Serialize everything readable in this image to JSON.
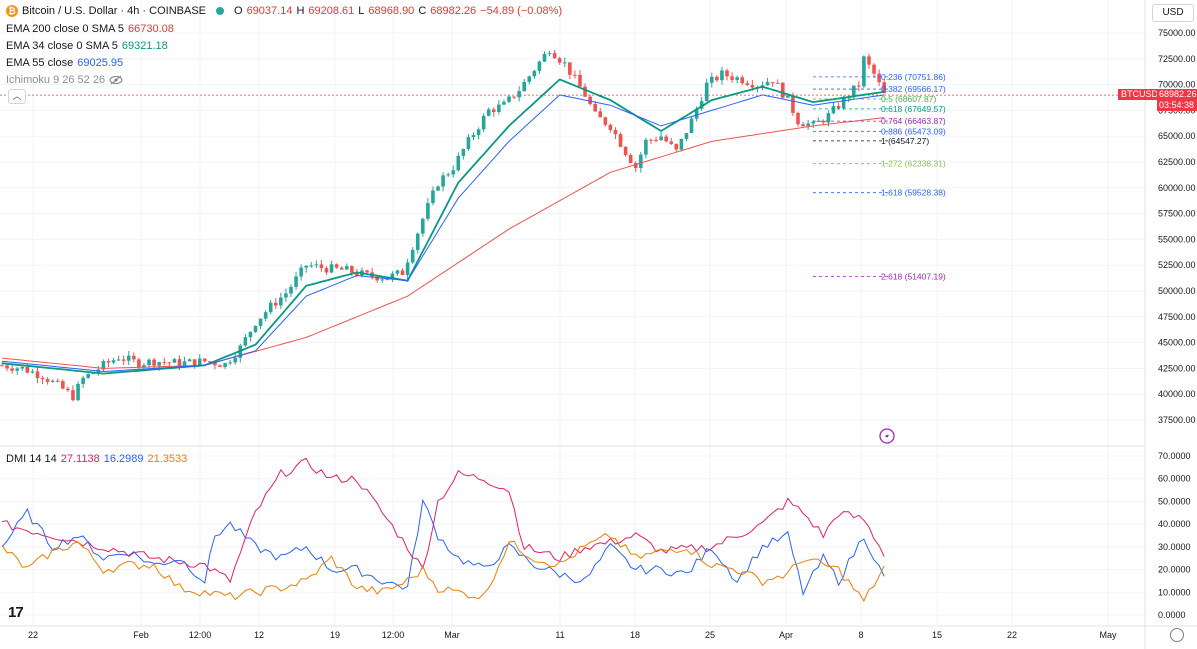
{
  "header": {
    "symbol_title": "Bitcoin / U.S. Dollar · 4h · COINBASE",
    "ohlc": {
      "o_label": "O",
      "o_val": "69037.14",
      "h_label": "H",
      "h_val": "69208.61",
      "l_label": "L",
      "l_val": "68968.90",
      "c_label": "C",
      "c_val": "68982.26",
      "change": "−54.89 (−0.08%)"
    }
  },
  "legend": {
    "ema200": {
      "label": "EMA 200 close 0 SMA 5",
      "value": "66730.08",
      "color": "#e53935"
    },
    "ema34": {
      "label": "EMA 34 close 0 SMA 5",
      "value": "69321.18",
      "color": "#089981"
    },
    "ema55": {
      "label": "EMA 55 close",
      "value": "69025.95",
      "color": "#2962ff"
    },
    "ichimoku": {
      "label": "Ichimoku 9 26 52 26"
    }
  },
  "currency": "USD",
  "price_label": {
    "symbol": "BTCUSD",
    "price": "68982.26",
    "countdown": "03:54:38"
  },
  "icons": [
    "bitcoin-icon",
    "eye-hidden-icon",
    "chevron-up-icon",
    "lightning-icon",
    "tradingview-logo",
    "settings-icon"
  ],
  "colors": {
    "up": "#26a69a",
    "down": "#ef5350",
    "ema200": "#ef5350",
    "ema34": "#089981",
    "ema55": "#2962ff",
    "di_plus": "#2962ff",
    "di_minus": "#e91e63",
    "adx": "#f57c00"
  },
  "chart_data": [
    {
      "type": "candlestick",
      "title": "Bitcoin / U.S. Dollar · 4h · COINBASE",
      "ylim": [
        36500,
        76000
      ],
      "y_ticks": [
        "75000.00",
        "72500.00",
        "70000.00",
        "67500.00",
        "65000.00",
        "62500.00",
        "60000.00",
        "57500.00",
        "55000.00",
        "52500.00",
        "50000.00",
        "47500.00",
        "45000.00",
        "42500.00",
        "40000.00",
        "37500.00"
      ],
      "x_ticks": [
        "22",
        "Feb",
        "12:00",
        "12",
        "19",
        "12:00",
        "Mar",
        "11",
        "18",
        "25",
        "Apr",
        "8",
        "15",
        "22",
        "May"
      ],
      "price_path": [
        [
          0,
          42800
        ],
        [
          4,
          42500
        ],
        [
          8,
          41800
        ],
        [
          12,
          40500
        ],
        [
          14,
          39800
        ],
        [
          16,
          41500
        ],
        [
          20,
          42800
        ],
        [
          23,
          43600
        ],
        [
          27,
          43000
        ],
        [
          30,
          43200
        ],
        [
          35,
          43000
        ],
        [
          40,
          43200
        ],
        [
          44,
          42900
        ],
        [
          47,
          44500
        ],
        [
          50,
          47000
        ],
        [
          53,
          48500
        ],
        [
          56,
          49800
        ],
        [
          60,
          52500
        ],
        [
          64,
          52200
        ],
        [
          68,
          52000
        ],
        [
          72,
          51500
        ],
        [
          76,
          51300
        ],
        [
          79,
          51800
        ],
        [
          83,
          57000
        ],
        [
          86,
          60500
        ],
        [
          89,
          62000
        ],
        [
          92,
          64500
        ],
        [
          94,
          66000
        ],
        [
          96,
          67500
        ],
        [
          99,
          68000
        ],
        [
          102,
          69500
        ],
        [
          105,
          71500
        ],
        [
          108,
          73500
        ],
        [
          111,
          72000
        ],
        [
          113,
          70500
        ],
        [
          115,
          69000
        ],
        [
          117,
          67000
        ],
        [
          120,
          66000
        ],
        [
          123,
          63500
        ],
        [
          125,
          62000
        ],
        [
          127,
          64500
        ],
        [
          130,
          65000
        ],
        [
          133,
          63500
        ],
        [
          136,
          66500
        ],
        [
          139,
          70000
        ],
        [
          142,
          71000
        ],
        [
          146,
          70500
        ],
        [
          149,
          70000
        ],
        [
          152,
          70500
        ],
        [
          155,
          68500
        ],
        [
          157,
          66500
        ],
        [
          160,
          66000
        ],
        [
          163,
          67000
        ],
        [
          166,
          68500
        ],
        [
          169,
          70000
        ],
        [
          170,
          72500
        ],
        [
          172,
          71000
        ],
        [
          174,
          69000
        ]
      ],
      "series": [
        {
          "name": "EMA 200",
          "values": [
            [
              0,
              43500
            ],
            [
              20,
              42500
            ],
            [
              40,
              42800
            ],
            [
              60,
              45500
            ],
            [
              80,
              49500
            ],
            [
              100,
              56000
            ],
            [
              120,
              61500
            ],
            [
              140,
              64500
            ],
            [
              160,
              66000
            ],
            [
              174,
              66800
            ]
          ]
        },
        {
          "name": "EMA 34",
          "values": [
            [
              0,
              43000
            ],
            [
              20,
              42000
            ],
            [
              40,
              42800
            ],
            [
              50,
              44800
            ],
            [
              60,
              50500
            ],
            [
              70,
              51800
            ],
            [
              80,
              51000
            ],
            [
              90,
              60500
            ],
            [
              100,
              66000
            ],
            [
              110,
              70500
            ],
            [
              120,
              68500
            ],
            [
              130,
              65500
            ],
            [
              140,
              68500
            ],
            [
              150,
              69800
            ],
            [
              160,
              68300
            ],
            [
              174,
              69300
            ]
          ]
        },
        {
          "name": "EMA 55",
          "values": [
            [
              0,
              43200
            ],
            [
              20,
              42200
            ],
            [
              40,
              42800
            ],
            [
              50,
              44200
            ],
            [
              60,
              49500
            ],
            [
              70,
              51500
            ],
            [
              80,
              51000
            ],
            [
              90,
              59000
            ],
            [
              100,
              64500
            ],
            [
              110,
              69000
            ],
            [
              120,
              68000
            ],
            [
              130,
              66000
            ],
            [
              140,
              67500
            ],
            [
              150,
              69000
            ],
            [
              160,
              68000
            ],
            [
              174,
              69000
            ]
          ]
        }
      ],
      "fib_levels": [
        {
          "ratio": "0.236",
          "price": "(70751.86)",
          "value": 70751.86,
          "color": "#2962ff"
        },
        {
          "ratio": "0.382",
          "price": "(69566.17)",
          "value": 69566.17,
          "color": "#2962ff"
        },
        {
          "ratio": "0.5",
          "price": "(68607.87)",
          "value": 68607.87,
          "color": "#4caf50"
        },
        {
          "ratio": "0.618",
          "price": "(67649.57)",
          "value": 67649.57,
          "color": "#089981"
        },
        {
          "ratio": "0.764",
          "price": "(66463.87)",
          "value": 66463.87,
          "color": "#9c27b0"
        },
        {
          "ratio": "0.886",
          "price": "(65473.09)",
          "value": 65473.09,
          "color": "#2962ff"
        },
        {
          "ratio": "1",
          "price": "(64547.27)",
          "value": 64547.27,
          "color": "#131722"
        },
        {
          "ratio": "1.272",
          "price": "(62338.31)",
          "value": 62338.31,
          "color": "#8bc34a"
        },
        {
          "ratio": "1.618",
          "price": "(59528.38)",
          "value": 59528.38,
          "color": "#2962ff"
        },
        {
          "ratio": "2.618",
          "price": "(51407.19)",
          "value": 51407.19,
          "color": "#9c27b0"
        }
      ]
    },
    {
      "type": "line",
      "title": "DMI 14 14",
      "ylim": [
        0,
        70
      ],
      "y_ticks": [
        "70.0000",
        "60.0000",
        "50.0000",
        "40.0000",
        "30.0000",
        "20.0000",
        "10.0000",
        "0.0000"
      ],
      "legend_values": [
        "27.1138",
        "16.2989",
        "21.3533"
      ],
      "series": [
        {
          "values": [
            [
              0,
              40
            ],
            [
              10,
              35
            ],
            [
              20,
              30
            ],
            [
              30,
              25
            ],
            [
              40,
              22
            ],
            [
              45,
              15
            ],
            [
              50,
              45
            ],
            [
              55,
              62
            ],
            [
              60,
              67
            ],
            [
              65,
              60
            ],
            [
              70,
              60
            ],
            [
              75,
              45
            ],
            [
              80,
              30
            ],
            [
              83,
              20
            ],
            [
              86,
              50
            ],
            [
              90,
              62
            ],
            [
              95,
              60
            ],
            [
              100,
              55
            ],
            [
              103,
              30
            ],
            [
              110,
              25
            ],
            [
              115,
              30
            ],
            [
              120,
              32
            ],
            [
              125,
              35
            ],
            [
              130,
              28
            ],
            [
              140,
              30
            ],
            [
              150,
              40
            ],
            [
              155,
              50
            ],
            [
              158,
              45
            ],
            [
              162,
              35
            ],
            [
              165,
              45
            ],
            [
              170,
              42
            ],
            [
              174,
              27
            ]
          ]
        },
        {
          "values": [
            [
              0,
              30
            ],
            [
              5,
              45
            ],
            [
              10,
              30
            ],
            [
              15,
              35
            ],
            [
              20,
              25
            ],
            [
              25,
              28
            ],
            [
              30,
              22
            ],
            [
              35,
              25
            ],
            [
              40,
              15
            ],
            [
              42,
              35
            ],
            [
              45,
              40
            ],
            [
              50,
              30
            ],
            [
              55,
              25
            ],
            [
              60,
              30
            ],
            [
              65,
              20
            ],
            [
              70,
              20
            ],
            [
              75,
              15
            ],
            [
              80,
              12
            ],
            [
              83,
              50
            ],
            [
              86,
              35
            ],
            [
              90,
              25
            ],
            [
              95,
              20
            ],
            [
              100,
              30
            ],
            [
              105,
              22
            ],
            [
              110,
              18
            ],
            [
              115,
              15
            ],
            [
              120,
              30
            ],
            [
              125,
              20
            ],
            [
              130,
              20
            ],
            [
              135,
              18
            ],
            [
              140,
              30
            ],
            [
              145,
              15
            ],
            [
              150,
              30
            ],
            [
              155,
              35
            ],
            [
              158,
              10
            ],
            [
              162,
              25
            ],
            [
              165,
              15
            ],
            [
              170,
              35
            ],
            [
              174,
              16
            ]
          ]
        },
        {
          "values": [
            [
              0,
              30
            ],
            [
              5,
              20
            ],
            [
              10,
              28
            ],
            [
              15,
              32
            ],
            [
              20,
              20
            ],
            [
              25,
              22
            ],
            [
              30,
              22
            ],
            [
              35,
              12
            ],
            [
              40,
              10
            ],
            [
              45,
              8
            ],
            [
              50,
              10
            ],
            [
              55,
              12
            ],
            [
              60,
              15
            ],
            [
              65,
              25
            ],
            [
              70,
              12
            ],
            [
              75,
              10
            ],
            [
              80,
              15
            ],
            [
              83,
              20
            ],
            [
              86,
              12
            ],
            [
              90,
              10
            ],
            [
              95,
              8
            ],
            [
              100,
              32
            ],
            [
              105,
              25
            ],
            [
              110,
              22
            ],
            [
              115,
              30
            ],
            [
              120,
              35
            ],
            [
              125,
              25
            ],
            [
              130,
              28
            ],
            [
              135,
              30
            ],
            [
              140,
              22
            ],
            [
              145,
              20
            ],
            [
              150,
              15
            ],
            [
              155,
              18
            ],
            [
              158,
              25
            ],
            [
              162,
              22
            ],
            [
              165,
              20
            ],
            [
              170,
              6
            ],
            [
              174,
              21
            ]
          ]
        }
      ]
    }
  ]
}
